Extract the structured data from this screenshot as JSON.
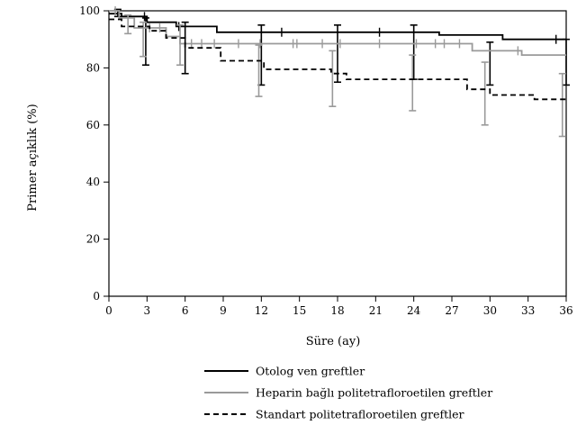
{
  "chart_data": {
    "type": "line",
    "subtype": "kaplan-meier step curves with censor marks and 95% error bars",
    "xlabel": "Süre (ay)",
    "ylabel": "Primer açıklık (%)",
    "xlim": [
      0,
      36
    ],
    "ylim": [
      0,
      100
    ],
    "xticks": [
      0,
      3,
      6,
      9,
      12,
      15,
      18,
      21,
      24,
      27,
      30,
      33,
      36
    ],
    "yticks": [
      0,
      20,
      40,
      60,
      80,
      100
    ],
    "grid": false,
    "legend_position": "bottom",
    "series": [
      {
        "name": "Otolog ven greftler",
        "color": "#000000",
        "style": "solid",
        "steps": [
          [
            0,
            99
          ],
          [
            1,
            99
          ],
          [
            1,
            98
          ],
          [
            3,
            98
          ],
          [
            3,
            96
          ],
          [
            5.3,
            96
          ],
          [
            5.3,
            94.5
          ],
          [
            8.5,
            94.5
          ],
          [
            8.5,
            92.5
          ],
          [
            18,
            92.5
          ],
          [
            26,
            92.5
          ],
          [
            26,
            91.5
          ],
          [
            31,
            91.5
          ],
          [
            31,
            90
          ],
          [
            36,
            90
          ]
        ],
        "censors": [
          [
            2.8,
            98
          ],
          [
            5.5,
            94.5
          ],
          [
            13.6,
            92.5
          ],
          [
            21.3,
            92.5
          ],
          [
            35.2,
            90
          ]
        ],
        "errorbars": [
          [
            0.7,
            98,
            100.5
          ],
          [
            2.9,
            81,
            97.5
          ],
          [
            6,
            78,
            96
          ],
          [
            12,
            74,
            95
          ],
          [
            18,
            75,
            95
          ],
          [
            24,
            76,
            95
          ],
          [
            30,
            74,
            89
          ],
          [
            36,
            74,
            90
          ]
        ]
      },
      {
        "name": "Heparin bağlı politetrafloroetilen greftler",
        "color": "#9a9a9a",
        "style": "solid",
        "steps": [
          [
            0,
            100
          ],
          [
            0.8,
            100
          ],
          [
            0.8,
            97.5
          ],
          [
            2,
            97.5
          ],
          [
            2,
            94
          ],
          [
            4.5,
            94
          ],
          [
            4.5,
            91
          ],
          [
            5.6,
            91
          ],
          [
            5.6,
            88.5
          ],
          [
            28.6,
            88.5
          ],
          [
            28.6,
            86
          ],
          [
            32.5,
            86
          ],
          [
            32.5,
            84.5
          ],
          [
            36,
            84.5
          ]
        ],
        "censors": [
          [
            0.5,
            100
          ],
          [
            3.2,
            94
          ],
          [
            4.0,
            94
          ],
          [
            6.5,
            88.5
          ],
          [
            7.3,
            88.5
          ],
          [
            8.3,
            88.5
          ],
          [
            10.2,
            88.5
          ],
          [
            11.9,
            88.5
          ],
          [
            14.5,
            88.5
          ],
          [
            14.8,
            88.5
          ],
          [
            16.8,
            88.5
          ],
          [
            18.2,
            88.5
          ],
          [
            21.3,
            88.5
          ],
          [
            24.2,
            88.5
          ],
          [
            25.7,
            88.5
          ],
          [
            26.4,
            88.5
          ],
          [
            27.6,
            88.5
          ],
          [
            32.2,
            86
          ]
        ],
        "errorbars": [
          [
            1.5,
            92,
            98.5
          ],
          [
            2.7,
            84,
            96
          ],
          [
            5.6,
            81,
            95
          ],
          [
            11.8,
            70,
            88
          ],
          [
            17.6,
            66.5,
            86
          ],
          [
            23.9,
            65,
            84.5
          ],
          [
            29.6,
            60,
            82
          ],
          [
            35.7,
            56,
            78
          ]
        ]
      },
      {
        "name": "Standart politetrafloroetilen greftler",
        "color": "#000000",
        "style": "dashed",
        "steps": [
          [
            0,
            97
          ],
          [
            1,
            97
          ],
          [
            1,
            94.5
          ],
          [
            3.2,
            94.5
          ],
          [
            3.2,
            93
          ],
          [
            4.5,
            93
          ],
          [
            4.5,
            90.5
          ],
          [
            6,
            90.5
          ],
          [
            6,
            87
          ],
          [
            8.8,
            87
          ],
          [
            8.8,
            82.5
          ],
          [
            12.2,
            82.5
          ],
          [
            12.2,
            79.5
          ],
          [
            17.5,
            79.5
          ],
          [
            17.5,
            78
          ],
          [
            18.7,
            78
          ],
          [
            18.7,
            76
          ],
          [
            28.2,
            76
          ],
          [
            28.2,
            72.5
          ],
          [
            30,
            72.5
          ],
          [
            30,
            70.5
          ],
          [
            33.5,
            70.5
          ],
          [
            33.5,
            69
          ],
          [
            36,
            69
          ]
        ],
        "censors": [],
        "errorbars": []
      }
    ]
  }
}
